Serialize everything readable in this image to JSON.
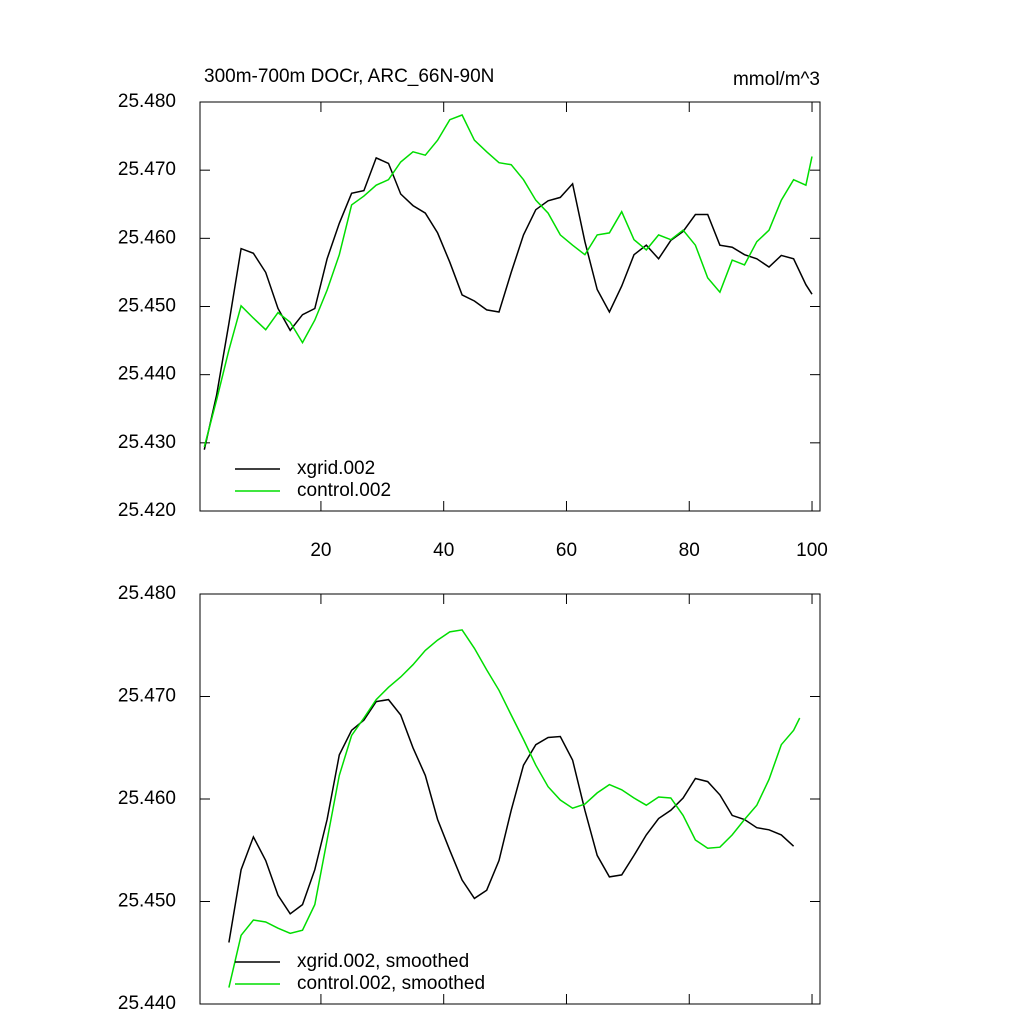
{
  "chart_data": [
    {
      "type": "line",
      "title": "300m-700m DOCr, ARC_66N-90N",
      "units": "mmol/m^3",
      "xlim": [
        0.3,
        101.3
      ],
      "xticks": [
        20,
        40,
        60,
        80,
        100
      ],
      "xtick_labels": true,
      "ylim": [
        25.42,
        25.48
      ],
      "yticks": [
        {
          "value": 25.42,
          "label": "25.420"
        },
        {
          "value": 25.43,
          "label": "25.430"
        },
        {
          "value": 25.44,
          "label": "25.440"
        },
        {
          "value": 25.45,
          "label": "25.450"
        },
        {
          "value": 25.46,
          "label": "25.460"
        },
        {
          "value": 25.47,
          "label": "25.470"
        },
        {
          "value": 25.48,
          "label": "25.480"
        }
      ],
      "legend": "lower left",
      "series": [
        {
          "name": "xgrid.002",
          "color": "#000000",
          "x": [
            1,
            3,
            5,
            7,
            9,
            11,
            13,
            15,
            17,
            19,
            21,
            23,
            25,
            27,
            29,
            31,
            33,
            35,
            37,
            39,
            41,
            43,
            45,
            47,
            49,
            51,
            53,
            55,
            57,
            59,
            61,
            63,
            65,
            67,
            69,
            71,
            73,
            75,
            77,
            79,
            81,
            83,
            85,
            87,
            89,
            91,
            93,
            95,
            97,
            99,
            100
          ],
          "values": [
            25.429,
            25.437,
            25.4475,
            25.4585,
            25.4578,
            25.455,
            25.4497,
            25.4465,
            25.4488,
            25.4497,
            25.457,
            25.4622,
            25.4666,
            25.467,
            25.4718,
            25.471,
            25.4665,
            25.4648,
            25.4637,
            25.4608,
            25.4565,
            25.4517,
            25.4508,
            25.4495,
            25.4492,
            25.455,
            25.4605,
            25.4642,
            25.4655,
            25.466,
            25.468,
            25.4595,
            25.4525,
            25.4492,
            25.453,
            25.4576,
            25.459,
            25.457,
            25.4597,
            25.461,
            25.4635,
            25.4635,
            25.459,
            25.4587,
            25.4576,
            25.457,
            25.4558,
            25.4575,
            25.457,
            25.4532,
            25.4518
          ]
        },
        {
          "name": "control.002",
          "color": "#00dd00",
          "x": [
            1,
            3,
            5,
            7,
            9,
            11,
            13,
            15,
            17,
            19,
            21,
            23,
            25,
            27,
            29,
            31,
            33,
            35,
            37,
            39,
            41,
            43,
            45,
            47,
            49,
            51,
            53,
            55,
            57,
            59,
            61,
            63,
            65,
            67,
            69,
            71,
            73,
            75,
            77,
            79,
            81,
            83,
            85,
            87,
            89,
            91,
            93,
            95,
            97,
            99,
            100
          ],
          "values": [
            25.4294,
            25.4363,
            25.4436,
            25.4501,
            25.4483,
            25.4466,
            25.4491,
            25.4477,
            25.4447,
            25.448,
            25.4524,
            25.4576,
            25.4649,
            25.4662,
            25.4678,
            25.4686,
            25.4712,
            25.4727,
            25.4722,
            25.4744,
            25.4774,
            25.4781,
            25.4744,
            25.4727,
            25.4711,
            25.4708,
            25.4686,
            25.4656,
            25.4637,
            25.4605,
            25.459,
            25.4576,
            25.4605,
            25.4608,
            25.4639,
            25.4598,
            25.4583,
            25.4605,
            25.4598,
            25.4612,
            25.459,
            25.4542,
            25.4521,
            25.4568,
            25.4561,
            25.4595,
            25.4612,
            25.4656,
            25.4686,
            25.4678,
            25.472
          ]
        }
      ]
    },
    {
      "type": "line",
      "xlim": [
        0.3,
        101.3
      ],
      "xticks": [
        20,
        40,
        60,
        80,
        100
      ],
      "xtick_labels": false,
      "ylim": [
        25.44,
        25.48
      ],
      "yticks": [
        {
          "value": 25.44,
          "label": "25.440"
        },
        {
          "value": 25.45,
          "label": "25.450"
        },
        {
          "value": 25.46,
          "label": "25.460"
        },
        {
          "value": 25.47,
          "label": "25.470"
        },
        {
          "value": 25.48,
          "label": "25.480"
        }
      ],
      "legend": "lower left",
      "series": [
        {
          "name": "xgrid.002, smoothed",
          "color": "#000000",
          "x": [
            5,
            7,
            9,
            11,
            13,
            15,
            17,
            19,
            21,
            23,
            25,
            27,
            29,
            31,
            33,
            35,
            37,
            39,
            41,
            43,
            45,
            47,
            49,
            51,
            53,
            55,
            57,
            59,
            61,
            63,
            65,
            67,
            69,
            71,
            73,
            75,
            77,
            79,
            81,
            83,
            85,
            87,
            89,
            91,
            93,
            95,
            97
          ],
          "values": [
            25.446,
            25.4531,
            25.4563,
            25.454,
            25.4506,
            25.4488,
            25.4497,
            25.4531,
            25.458,
            25.4643,
            25.4667,
            25.4677,
            25.4695,
            25.4697,
            25.4682,
            25.465,
            25.4623,
            25.458,
            25.455,
            25.4521,
            25.4503,
            25.4511,
            25.454,
            25.4589,
            25.4633,
            25.4653,
            25.466,
            25.4661,
            25.4638,
            25.4589,
            25.4545,
            25.4524,
            25.4526,
            25.4545,
            25.4565,
            25.4581,
            25.4589,
            25.4601,
            25.462,
            25.4617,
            25.4604,
            25.4584,
            25.458,
            25.4572,
            25.457,
            25.4565,
            25.4554
          ]
        },
        {
          "name": "control.002, smoothed",
          "color": "#00dd00",
          "x": [
            5,
            7,
            9,
            11,
            13,
            15,
            17,
            19,
            21,
            23,
            25,
            27,
            29,
            31,
            33,
            35,
            37,
            39,
            41,
            43,
            45,
            47,
            49,
            51,
            53,
            55,
            57,
            59,
            61,
            63,
            65,
            67,
            69,
            71,
            73,
            75,
            77,
            79,
            81,
            83,
            85,
            87,
            89,
            91,
            93,
            95,
            97,
            98
          ],
          "values": [
            25.4416,
            25.4467,
            25.4482,
            25.448,
            25.4474,
            25.4469,
            25.4472,
            25.4497,
            25.456,
            25.4623,
            25.4662,
            25.4679,
            25.4697,
            25.4709,
            25.4719,
            25.4731,
            25.4745,
            25.4755,
            25.4763,
            25.4765,
            25.4747,
            25.4726,
            25.4706,
            25.4682,
            25.4658,
            25.4633,
            25.4612,
            25.4599,
            25.4591,
            25.4595,
            25.4606,
            25.4614,
            25.4609,
            25.4601,
            25.4594,
            25.4602,
            25.4601,
            25.4584,
            25.456,
            25.4552,
            25.4553,
            25.4565,
            25.458,
            25.4594,
            25.4619,
            25.4653,
            25.4667,
            25.4679
          ]
        }
      ]
    }
  ]
}
